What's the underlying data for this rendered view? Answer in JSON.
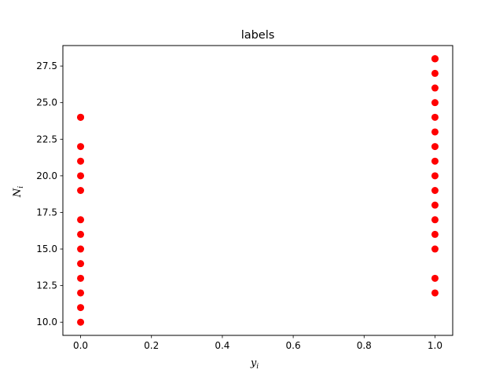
{
  "chart_data": {
    "type": "scatter",
    "title": "labels",
    "xlabel_main": "y",
    "xlabel_sub": "i",
    "ylabel_main": "N",
    "ylabel_sub": "i",
    "xlim": [
      -0.05,
      1.05
    ],
    "ylim": [
      9.1,
      28.9
    ],
    "xticks": [
      0.0,
      0.2,
      0.4,
      0.6,
      0.8,
      1.0
    ],
    "xtick_labels": [
      "0.0",
      "0.2",
      "0.4",
      "0.6",
      "0.8",
      "1.0"
    ],
    "yticks": [
      10.0,
      12.5,
      15.0,
      17.5,
      20.0,
      22.5,
      25.0,
      27.5
    ],
    "ytick_labels": [
      "10.0",
      "12.5",
      "15.0",
      "17.5",
      "20.0",
      "22.5",
      "25.0",
      "27.5"
    ],
    "grid": false,
    "marker_color": "#ff0000",
    "series": [
      {
        "x": [
          0,
          0,
          0,
          0,
          0,
          0,
          0,
          0,
          0,
          0,
          0,
          0,
          0,
          0,
          1,
          1,
          1,
          1,
          1,
          1,
          1,
          1,
          1,
          1,
          1,
          1,
          1,
          1,
          1,
          1,
          1,
          1
        ],
        "y": [
          10,
          11,
          12,
          13,
          14,
          15,
          16,
          17,
          19,
          20,
          21,
          22,
          24,
          24,
          12,
          13,
          15,
          16,
          17,
          18,
          19,
          20,
          21,
          22,
          23,
          24,
          25,
          26,
          27,
          28,
          28,
          28
        ]
      }
    ]
  }
}
